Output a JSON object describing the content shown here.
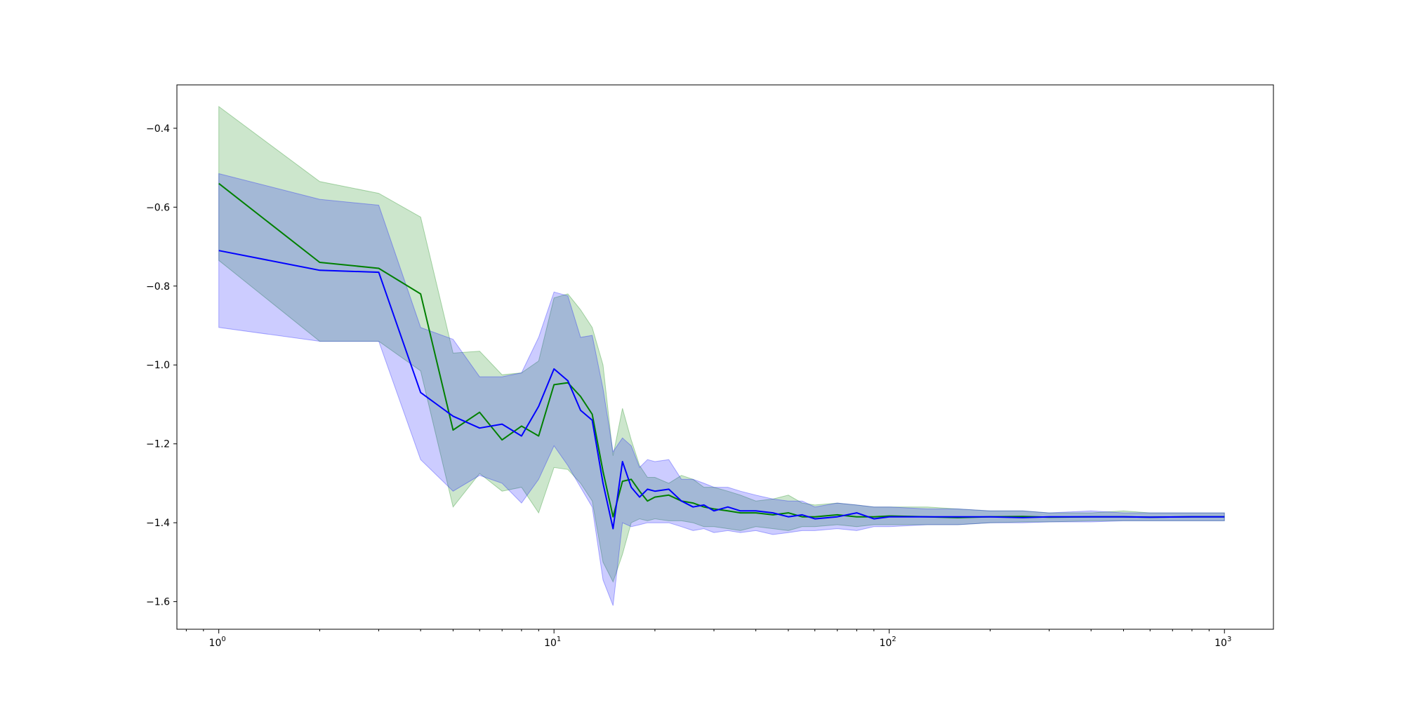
{
  "chart_data": {
    "type": "line",
    "title": "",
    "xlabel": "",
    "ylabel": "",
    "xscale": "log",
    "xlim": [
      0.75,
      1400
    ],
    "ylim": [
      -1.67,
      -0.29
    ],
    "grid": false,
    "x_ticks": [
      {
        "value": 1,
        "base": "10",
        "exp": "0"
      },
      {
        "value": 10,
        "base": "10",
        "exp": "1"
      },
      {
        "value": 100,
        "base": "10",
        "exp": "2"
      },
      {
        "value": 1000,
        "base": "10",
        "exp": "3"
      }
    ],
    "y_ticks": [
      {
        "value": -0.4,
        "label": "−0.4"
      },
      {
        "value": -0.6,
        "label": "−0.6"
      },
      {
        "value": -0.8,
        "label": "−0.8"
      },
      {
        "value": -1.0,
        "label": "−1.0"
      },
      {
        "value": -1.2,
        "label": "−1.2"
      },
      {
        "value": -1.4,
        "label": "−1.4"
      },
      {
        "value": -1.6,
        "label": "−1.6"
      }
    ],
    "series": [
      {
        "color": "#008000",
        "band_color": "#008000",
        "band_opacity": 0.2,
        "x": [
          1,
          2,
          3,
          4,
          5,
          6,
          7,
          8,
          9,
          10,
          11,
          12,
          13,
          14,
          15,
          16,
          17,
          18,
          19,
          20,
          22,
          24,
          26,
          28,
          30,
          33,
          36,
          40,
          45,
          50,
          55,
          60,
          70,
          80,
          90,
          100,
          130,
          160,
          200,
          250,
          300,
          400,
          500,
          600,
          800,
          1000
        ],
        "y": [
          -0.54,
          -0.74,
          -0.755,
          -0.82,
          -1.165,
          -1.12,
          -1.19,
          -1.155,
          -1.18,
          -1.05,
          -1.045,
          -1.08,
          -1.125,
          -1.27,
          -1.385,
          -1.295,
          -1.29,
          -1.32,
          -1.345,
          -1.335,
          -1.33,
          -1.345,
          -1.35,
          -1.36,
          -1.365,
          -1.37,
          -1.375,
          -1.375,
          -1.38,
          -1.375,
          -1.385,
          -1.385,
          -1.38,
          -1.385,
          -1.385,
          -1.383,
          -1.385,
          -1.387,
          -1.385,
          -1.384,
          -1.386,
          -1.385,
          -1.385,
          -1.386,
          -1.385,
          -1.385
        ],
        "upper": [
          -0.345,
          -0.535,
          -0.565,
          -0.625,
          -0.97,
          -0.965,
          -1.025,
          -1.02,
          -0.99,
          -0.83,
          -0.82,
          -0.86,
          -0.905,
          -1.0,
          -1.23,
          -1.11,
          -1.19,
          -1.255,
          -1.285,
          -1.285,
          -1.3,
          -1.28,
          -1.29,
          -1.31,
          -1.31,
          -1.32,
          -1.33,
          -1.345,
          -1.34,
          -1.33,
          -1.35,
          -1.355,
          -1.35,
          -1.355,
          -1.36,
          -1.36,
          -1.36,
          -1.365,
          -1.37,
          -1.37,
          -1.375,
          -1.375,
          -1.37,
          -1.375,
          -1.375,
          -1.375
        ],
        "lower": [
          -0.735,
          -0.94,
          -0.94,
          -1.015,
          -1.36,
          -1.275,
          -1.32,
          -1.31,
          -1.375,
          -1.26,
          -1.265,
          -1.3,
          -1.345,
          -1.5,
          -1.55,
          -1.48,
          -1.4,
          -1.39,
          -1.395,
          -1.39,
          -1.395,
          -1.395,
          -1.4,
          -1.41,
          -1.41,
          -1.415,
          -1.42,
          -1.41,
          -1.415,
          -1.42,
          -1.41,
          -1.41,
          -1.405,
          -1.41,
          -1.405,
          -1.405,
          -1.405,
          -1.405,
          -1.4,
          -1.398,
          -1.398,
          -1.395,
          -1.395,
          -1.395,
          -1.395,
          -1.395
        ]
      },
      {
        "color": "#0000ff",
        "band_color": "#0000ff",
        "band_opacity": 0.2,
        "x": [
          1,
          2,
          3,
          4,
          5,
          6,
          7,
          8,
          9,
          10,
          11,
          12,
          13,
          14,
          15,
          16,
          17,
          18,
          19,
          20,
          22,
          24,
          26,
          28,
          30,
          33,
          36,
          40,
          45,
          50,
          55,
          60,
          70,
          80,
          90,
          100,
          130,
          160,
          200,
          250,
          300,
          400,
          500,
          600,
          800,
          1000
        ],
        "y": [
          -0.71,
          -0.76,
          -0.765,
          -1.07,
          -1.13,
          -1.16,
          -1.15,
          -1.18,
          -1.105,
          -1.01,
          -1.04,
          -1.115,
          -1.14,
          -1.3,
          -1.415,
          -1.245,
          -1.31,
          -1.335,
          -1.315,
          -1.32,
          -1.315,
          -1.345,
          -1.36,
          -1.355,
          -1.37,
          -1.36,
          -1.37,
          -1.37,
          -1.375,
          -1.385,
          -1.38,
          -1.39,
          -1.385,
          -1.375,
          -1.39,
          -1.385,
          -1.385,
          -1.385,
          -1.385,
          -1.387,
          -1.385,
          -1.385,
          -1.385,
          -1.386,
          -1.385,
          -1.385
        ],
        "upper": [
          -0.515,
          -0.58,
          -0.595,
          -0.905,
          -0.935,
          -1.03,
          -1.03,
          -1.02,
          -0.93,
          -0.815,
          -0.825,
          -0.93,
          -0.925,
          -1.06,
          -1.22,
          -1.185,
          -1.205,
          -1.26,
          -1.24,
          -1.245,
          -1.24,
          -1.29,
          -1.29,
          -1.3,
          -1.31,
          -1.31,
          -1.32,
          -1.33,
          -1.34,
          -1.345,
          -1.345,
          -1.36,
          -1.35,
          -1.355,
          -1.36,
          -1.36,
          -1.365,
          -1.365,
          -1.37,
          -1.37,
          -1.375,
          -1.37,
          -1.375,
          -1.375,
          -1.375,
          -1.375
        ],
        "lower": [
          -0.905,
          -0.94,
          -0.94,
          -1.24,
          -1.32,
          -1.28,
          -1.3,
          -1.35,
          -1.29,
          -1.205,
          -1.255,
          -1.31,
          -1.36,
          -1.545,
          -1.61,
          -1.4,
          -1.41,
          -1.405,
          -1.4,
          -1.4,
          -1.4,
          -1.41,
          -1.42,
          -1.415,
          -1.425,
          -1.42,
          -1.425,
          -1.42,
          -1.43,
          -1.425,
          -1.42,
          -1.42,
          -1.415,
          -1.42,
          -1.41,
          -1.41,
          -1.405,
          -1.405,
          -1.4,
          -1.4,
          -1.398,
          -1.398,
          -1.395,
          -1.395,
          -1.395,
          -1.395
        ]
      }
    ]
  }
}
